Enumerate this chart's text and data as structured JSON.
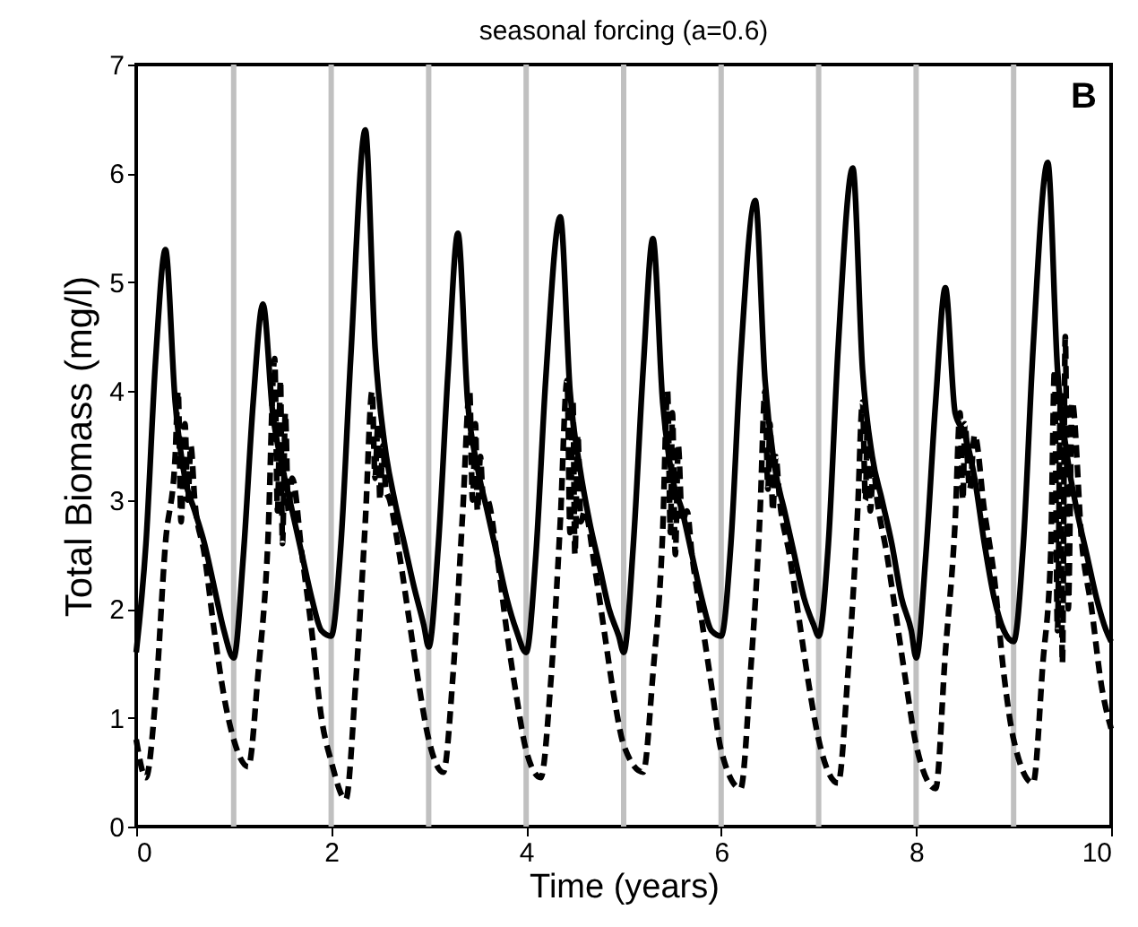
{
  "chart_data": {
    "type": "line",
    "title": "seasonal forcing (a=0.6)",
    "xlabel": "Time (years)",
    "ylabel": "Total Biomass (mg/l)",
    "annotations": [
      "B"
    ],
    "xlim": [
      0,
      10
    ],
    "xticks": [
      0,
      2,
      4,
      6,
      8,
      10
    ],
    "ylim": [
      0,
      7
    ],
    "yticks": [
      0,
      1,
      2,
      3,
      4,
      5,
      6,
      7
    ],
    "grid": false,
    "marker": "none",
    "ref_lines": [
      {
        "axis": "x",
        "value": 1,
        "color": "#c0c0c0"
      },
      {
        "axis": "x",
        "value": 2,
        "color": "#c0c0c0"
      },
      {
        "axis": "x",
        "value": 3,
        "color": "#c0c0c0"
      },
      {
        "axis": "x",
        "value": 4,
        "color": "#c0c0c0"
      },
      {
        "axis": "x",
        "value": 5,
        "color": "#c0c0c0"
      },
      {
        "axis": "x",
        "value": 6,
        "color": "#c0c0c0"
      },
      {
        "axis": "x",
        "value": 7,
        "color": "#c0c0c0"
      },
      {
        "axis": "x",
        "value": 8,
        "color": "#c0c0c0"
      },
      {
        "axis": "x",
        "value": 9,
        "color": "#c0c0c0"
      }
    ],
    "series": [
      {
        "color": "#000000",
        "line_style": "solid",
        "x": [
          0,
          0.1,
          0.2,
          0.3,
          0.4,
          0.5,
          0.6,
          0.7,
          0.8,
          0.9,
          1.0,
          1.1,
          1.2,
          1.3,
          1.4,
          1.5,
          1.6,
          1.7,
          1.8,
          1.9,
          2.0,
          2.1,
          2.2,
          2.35,
          2.45,
          2.55,
          2.65,
          2.75,
          2.85,
          2.95,
          3.0,
          3.1,
          3.2,
          3.3,
          3.4,
          3.5,
          3.6,
          3.7,
          3.8,
          3.9,
          4.0,
          4.1,
          4.2,
          4.35,
          4.45,
          4.55,
          4.65,
          4.75,
          4.85,
          4.95,
          5.0,
          5.1,
          5.2,
          5.3,
          5.4,
          5.5,
          5.6,
          5.7,
          5.8,
          5.9,
          6.0,
          6.1,
          6.2,
          6.35,
          6.45,
          6.55,
          6.65,
          6.75,
          6.85,
          6.95,
          7.0,
          7.1,
          7.2,
          7.35,
          7.45,
          7.55,
          7.65,
          7.75,
          7.85,
          7.95,
          8.0,
          8.1,
          8.2,
          8.3,
          8.4,
          8.5,
          8.6,
          8.7,
          8.8,
          8.9,
          9.0,
          9.1,
          9.2,
          9.35,
          9.45,
          9.55,
          9.65,
          9.75,
          9.85,
          9.95,
          10.0
        ],
        "values": [
          1.6,
          2.6,
          4.3,
          5.3,
          3.9,
          3.2,
          2.9,
          2.6,
          2.2,
          1.8,
          1.55,
          2.5,
          3.9,
          4.8,
          3.8,
          3.3,
          2.9,
          2.5,
          2.1,
          1.8,
          1.75,
          2.6,
          4.3,
          6.4,
          4.4,
          3.5,
          3.0,
          2.6,
          2.2,
          1.85,
          1.65,
          2.6,
          4.2,
          5.45,
          3.9,
          3.3,
          2.9,
          2.5,
          2.1,
          1.8,
          1.6,
          2.5,
          4.1,
          5.6,
          4.0,
          3.3,
          2.8,
          2.4,
          2.0,
          1.75,
          1.6,
          2.6,
          4.2,
          5.4,
          3.9,
          3.2,
          2.9,
          2.5,
          2.1,
          1.8,
          1.75,
          2.6,
          4.3,
          5.75,
          4.1,
          3.3,
          2.9,
          2.5,
          2.1,
          1.85,
          1.75,
          2.6,
          4.4,
          6.05,
          4.2,
          3.4,
          3.0,
          2.6,
          2.1,
          1.8,
          1.55,
          2.5,
          3.9,
          4.95,
          3.8,
          3.6,
          3.2,
          2.6,
          2.1,
          1.8,
          1.7,
          2.6,
          4.4,
          6.1,
          4.2,
          3.4,
          2.9,
          2.5,
          2.1,
          1.8,
          1.7
        ]
      },
      {
        "color": "#000000",
        "line_style": "dashed",
        "x": [
          0,
          0.1,
          0.2,
          0.3,
          0.4,
          0.43,
          0.46,
          0.5,
          0.53,
          0.56,
          0.6,
          0.7,
          0.8,
          0.9,
          1.0,
          1.15,
          1.25,
          1.35,
          1.42,
          1.45,
          1.48,
          1.5,
          1.53,
          1.56,
          1.6,
          1.7,
          1.8,
          1.9,
          2.0,
          2.15,
          2.25,
          2.35,
          2.42,
          2.45,
          2.48,
          2.5,
          2.53,
          2.56,
          2.6,
          2.7,
          2.8,
          2.9,
          3.0,
          3.15,
          3.25,
          3.35,
          3.42,
          3.45,
          3.48,
          3.5,
          3.53,
          3.56,
          3.6,
          3.7,
          3.8,
          3.9,
          4.0,
          4.15,
          4.25,
          4.35,
          4.42,
          4.45,
          4.48,
          4.5,
          4.53,
          4.56,
          4.6,
          4.7,
          4.8,
          4.9,
          5.0,
          5.2,
          5.3,
          5.4,
          5.45,
          5.48,
          5.5,
          5.53,
          5.56,
          5.6,
          5.65,
          5.7,
          5.8,
          5.9,
          6.0,
          6.2,
          6.3,
          6.4,
          6.45,
          6.48,
          6.5,
          6.53,
          6.56,
          6.6,
          6.7,
          6.8,
          6.9,
          7.0,
          7.2,
          7.3,
          7.4,
          7.45,
          7.48,
          7.5,
          7.53,
          7.56,
          7.6,
          7.7,
          7.8,
          7.9,
          8.0,
          8.2,
          8.3,
          8.4,
          8.45,
          8.48,
          8.5,
          8.55,
          8.6,
          8.7,
          8.8,
          8.9,
          9.0,
          9.2,
          9.3,
          9.38,
          9.42,
          9.45,
          9.48,
          9.5,
          9.53,
          9.56,
          9.6,
          9.7,
          9.8,
          9.9,
          10.0
        ],
        "values": [
          0.8,
          0.45,
          1.2,
          2.6,
          3.4,
          4.0,
          2.8,
          3.7,
          3.0,
          3.5,
          3.0,
          2.5,
          1.8,
          1.2,
          0.8,
          0.55,
          1.4,
          2.6,
          4.3,
          2.9,
          4.1,
          2.6,
          3.8,
          2.9,
          3.2,
          2.5,
          1.8,
          1.0,
          0.6,
          0.25,
          1.3,
          2.8,
          4.0,
          3.2,
          3.7,
          3.0,
          3.5,
          3.1,
          3.0,
          2.5,
          1.9,
          1.3,
          0.8,
          0.5,
          1.4,
          2.9,
          4.0,
          3.0,
          3.7,
          2.9,
          3.4,
          3.0,
          3.0,
          2.5,
          1.8,
          1.2,
          0.7,
          0.45,
          1.3,
          2.8,
          4.1,
          2.7,
          3.9,
          2.5,
          3.6,
          2.8,
          2.9,
          2.4,
          1.8,
          1.2,
          0.75,
          0.5,
          1.4,
          2.7,
          4.0,
          2.7,
          3.8,
          2.5,
          3.5,
          2.8,
          2.9,
          2.5,
          1.9,
          1.3,
          0.7,
          0.35,
          1.4,
          2.9,
          4.0,
          3.1,
          3.7,
          2.9,
          3.4,
          3.0,
          2.5,
          1.9,
          1.3,
          0.8,
          0.4,
          1.4,
          2.9,
          3.9,
          3.0,
          3.7,
          2.9,
          3.3,
          3.0,
          2.5,
          1.9,
          1.3,
          0.75,
          0.35,
          1.6,
          2.8,
          3.8,
          3.0,
          3.7,
          3.1,
          3.6,
          2.9,
          2.3,
          1.4,
          0.8,
          0.4,
          1.5,
          2.5,
          4.2,
          1.8,
          3.9,
          1.5,
          4.5,
          2.0,
          3.9,
          2.6,
          2.0,
          1.3,
          0.9
        ]
      }
    ]
  }
}
